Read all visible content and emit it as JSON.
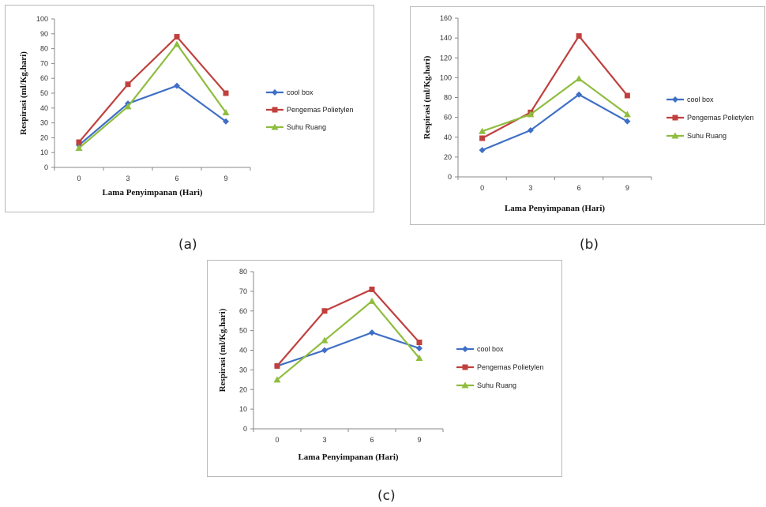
{
  "captions": {
    "a": "(a)",
    "b": "(b)",
    "c": "(c)"
  },
  "colors": {
    "cool_box": "#3f6fc6",
    "pengemas": "#c0403e",
    "suhu_ruang": "#8fbd3f"
  },
  "chart_data": [
    {
      "id": "a",
      "type": "line",
      "title": "",
      "xlabel": "Lama Penyimpanan (Hari)",
      "ylabel": "Respirasi (ml/Kg.hari)",
      "x": [
        0,
        3,
        6,
        9
      ],
      "ylim": [
        0,
        100
      ],
      "yticks": [
        0,
        10,
        20,
        30,
        40,
        50,
        60,
        70,
        80,
        90,
        100
      ],
      "grid": false,
      "legend": "right",
      "series": [
        {
          "name": "cool box",
          "marker": "diamond",
          "values": [
            15,
            43,
            55,
            31
          ]
        },
        {
          "name": "Pengemas Polietylen",
          "marker": "square",
          "values": [
            17,
            56,
            88,
            50
          ]
        },
        {
          "name": "Suhu Ruang",
          "marker": "triangle",
          "values": [
            13,
            41,
            83,
            37
          ]
        }
      ]
    },
    {
      "id": "b",
      "type": "line",
      "title": "",
      "xlabel": "Lama Penyimpanan (Hari)",
      "ylabel": "Respirasi (ml/Kg.hari)",
      "x": [
        0,
        3,
        6,
        9
      ],
      "ylim": [
        0,
        160
      ],
      "yticks": [
        0,
        20,
        40,
        60,
        80,
        100,
        120,
        140,
        160
      ],
      "grid": false,
      "legend": "right",
      "series": [
        {
          "name": "cool box",
          "marker": "diamond",
          "values": [
            27,
            47,
            83,
            56
          ]
        },
        {
          "name": "Pengemas Polietylen",
          "marker": "square",
          "values": [
            39,
            65,
            142,
            82
          ]
        },
        {
          "name": "Suhu Ruang",
          "marker": "triangle",
          "values": [
            46,
            63,
            99,
            63
          ]
        }
      ]
    },
    {
      "id": "c",
      "type": "line",
      "title": "",
      "xlabel": "Lama Penyimpanan (Hari)",
      "ylabel": "Respirasi (ml/Kg.hari)",
      "x": [
        0,
        3,
        6,
        9
      ],
      "ylim": [
        0,
        80
      ],
      "yticks": [
        0,
        10,
        20,
        30,
        40,
        50,
        60,
        70,
        80
      ],
      "grid": false,
      "legend": "right",
      "series": [
        {
          "name": "cool box",
          "marker": "diamond",
          "values": [
            32,
            40,
            49,
            41
          ]
        },
        {
          "name": "Pengemas Polietylen",
          "marker": "square",
          "values": [
            32,
            60,
            71,
            44
          ]
        },
        {
          "name": "Suhu Ruang",
          "marker": "triangle",
          "values": [
            25,
            45,
            65,
            36
          ]
        }
      ]
    }
  ]
}
